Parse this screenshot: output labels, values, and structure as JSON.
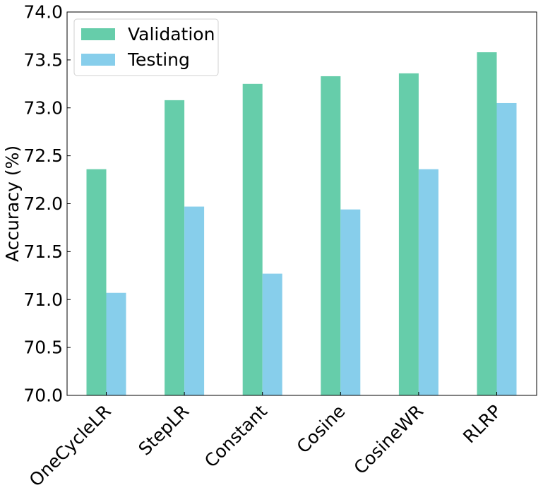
{
  "chart_data": {
    "type": "bar",
    "title": "",
    "xlabel": "",
    "ylabel": "Accuracy (%)",
    "ylim": [
      70.0,
      74.0
    ],
    "yticks": [
      "70.0",
      "70.5",
      "71.0",
      "71.5",
      "72.0",
      "72.5",
      "73.0",
      "73.5",
      "74.0"
    ],
    "categories": [
      "OneCycleLR",
      "StepLR",
      "Constant",
      "Cosine",
      "CosineWR",
      "RLRP"
    ],
    "series": [
      {
        "name": "Validation",
        "color": "#66cdaa",
        "values": [
          72.36,
          73.08,
          73.25,
          73.33,
          73.36,
          73.58
        ]
      },
      {
        "name": "Testing",
        "color": "#87ceeb",
        "values": [
          71.07,
          71.97,
          71.27,
          71.94,
          72.36,
          73.05
        ]
      }
    ],
    "legend_position": "top-left",
    "grid": false,
    "xtick_rotation": 45
  }
}
